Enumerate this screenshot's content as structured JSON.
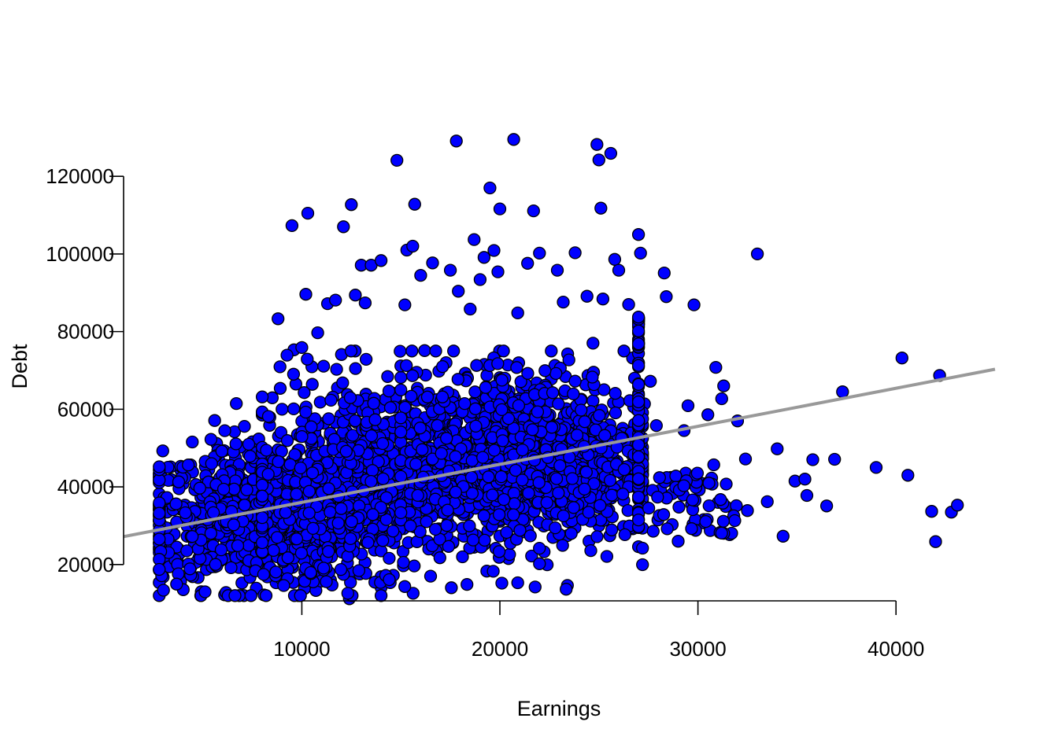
{
  "chart_data": {
    "type": "scatter",
    "title": "",
    "xlabel": "Earnings",
    "ylabel": "Debt",
    "xlim": [
      1000,
      45000
    ],
    "ylim": [
      7000,
      133000
    ],
    "xticks": [
      10000,
      20000,
      30000,
      40000
    ],
    "yticks": [
      20000,
      40000,
      60000,
      80000,
      100000,
      120000
    ],
    "xtick_labels": [
      "10000",
      "20000",
      "30000",
      "40000"
    ],
    "ytick_labels": [
      "20000",
      "40000",
      "60000",
      "80000",
      "100000",
      "120000"
    ],
    "grid": false,
    "legend": "none",
    "point_fill": "#0000ff",
    "point_stroke": "#000000",
    "fit_line_color": "#999999",
    "fit_line": {
      "x": [
        1000,
        45000
      ],
      "y": [
        27200,
        70300
      ]
    },
    "points": [
      [
        2800,
        38200
      ],
      [
        2900,
        35200
      ],
      [
        3100,
        21400
      ],
      [
        3200,
        33500
      ],
      [
        3000,
        16800
      ],
      [
        3400,
        29300
      ],
      [
        3500,
        23900
      ],
      [
        3700,
        21300
      ],
      [
        3900,
        44200
      ],
      [
        4000,
        40800
      ],
      [
        4100,
        35300
      ],
      [
        4400,
        19300
      ],
      [
        4600,
        29800
      ],
      [
        4800,
        21700
      ],
      [
        5200,
        33400
      ],
      [
        5300,
        27600
      ],
      [
        5400,
        24500
      ],
      [
        5600,
        57100
      ],
      [
        5700,
        51200
      ],
      [
        5800,
        47000
      ],
      [
        6100,
        12200
      ],
      [
        6200,
        38000
      ],
      [
        6400,
        43200
      ],
      [
        6600,
        54200
      ],
      [
        6800,
        21100
      ],
      [
        7000,
        32300
      ],
      [
        7100,
        55600
      ],
      [
        7300,
        48500
      ],
      [
        7500,
        51600
      ],
      [
        7700,
        13900
      ],
      [
        7900,
        28000
      ],
      [
        8000,
        19800
      ],
      [
        8200,
        44400
      ],
      [
        8400,
        22400
      ],
      [
        8600,
        36700
      ],
      [
        8700,
        15300
      ],
      [
        8800,
        83300
      ],
      [
        9000,
        60000
      ],
      [
        9200,
        30200
      ],
      [
        9400,
        38700
      ],
      [
        9500,
        107300
      ],
      [
        9600,
        75300
      ],
      [
        9700,
        66500
      ],
      [
        9800,
        49400
      ],
      [
        10000,
        75900
      ],
      [
        10200,
        89600
      ],
      [
        10300,
        110500
      ],
      [
        10400,
        57500
      ],
      [
        10600,
        22500
      ],
      [
        10800,
        79700
      ],
      [
        11100,
        71100
      ],
      [
        11300,
        87200
      ],
      [
        11500,
        45500
      ],
      [
        11700,
        88100
      ],
      [
        12000,
        74100
      ],
      [
        12100,
        107000
      ],
      [
        12300,
        63800
      ],
      [
        12400,
        11200
      ],
      [
        12500,
        112700
      ],
      [
        12700,
        89400
      ],
      [
        13000,
        97100
      ],
      [
        13200,
        87400
      ],
      [
        13500,
        97100
      ],
      [
        13800,
        54600
      ],
      [
        14000,
        98300
      ],
      [
        14100,
        15500
      ],
      [
        14500,
        61300
      ],
      [
        14800,
        124100
      ],
      [
        15200,
        86900
      ],
      [
        15300,
        101000
      ],
      [
        15600,
        102000
      ],
      [
        15700,
        112800
      ],
      [
        16000,
        94500
      ],
      [
        16200,
        75100
      ],
      [
        16400,
        64100
      ],
      [
        16500,
        17000
      ],
      [
        16600,
        97700
      ],
      [
        16800,
        61600
      ],
      [
        17200,
        57700
      ],
      [
        17500,
        95800
      ],
      [
        17800,
        129100
      ],
      [
        17900,
        90400
      ],
      [
        18200,
        46400
      ],
      [
        18500,
        85800
      ],
      [
        18700,
        103700
      ],
      [
        19000,
        93400
      ],
      [
        19200,
        99100
      ],
      [
        19500,
        117000
      ],
      [
        19700,
        100900
      ],
      [
        19900,
        95400
      ],
      [
        20000,
        111600
      ],
      [
        20100,
        15200
      ],
      [
        20400,
        71400
      ],
      [
        20700,
        129500
      ],
      [
        20900,
        84800
      ],
      [
        21100,
        65600
      ],
      [
        21400,
        97600
      ],
      [
        21600,
        22200
      ],
      [
        21700,
        111100
      ],
      [
        22000,
        100200
      ],
      [
        22300,
        44600
      ],
      [
        22600,
        67800
      ],
      [
        22900,
        95800
      ],
      [
        23200,
        87600
      ],
      [
        23500,
        58200
      ],
      [
        23800,
        100300
      ],
      [
        24100,
        62400
      ],
      [
        24400,
        89100
      ],
      [
        24700,
        77000
      ],
      [
        24900,
        128200
      ],
      [
        25000,
        124200
      ],
      [
        25100,
        111800
      ],
      [
        25200,
        88400
      ],
      [
        25400,
        22100
      ],
      [
        25600,
        125900
      ],
      [
        25800,
        98600
      ],
      [
        26000,
        95800
      ],
      [
        26200,
        55100
      ],
      [
        26500,
        87000
      ],
      [
        26700,
        73200
      ],
      [
        27000,
        105000
      ],
      [
        27100,
        100200
      ],
      [
        27000,
        24600
      ],
      [
        27300,
        61400
      ],
      [
        27600,
        67200
      ],
      [
        27900,
        55800
      ],
      [
        28300,
        95100
      ],
      [
        28400,
        89000
      ],
      [
        28700,
        30300
      ],
      [
        29000,
        26000
      ],
      [
        29300,
        54500
      ],
      [
        29500,
        60900
      ],
      [
        29800,
        86900
      ],
      [
        30200,
        40900
      ],
      [
        30500,
        58600
      ],
      [
        30800,
        45700
      ],
      [
        30900,
        70800
      ],
      [
        31200,
        62700
      ],
      [
        31300,
        66000
      ],
      [
        31600,
        27700
      ],
      [
        32000,
        57000
      ],
      [
        32400,
        47200
      ],
      [
        32500,
        33900
      ],
      [
        33000,
        100000
      ],
      [
        33500,
        36200
      ],
      [
        34000,
        49800
      ],
      [
        34300,
        27300
      ],
      [
        34900,
        41500
      ],
      [
        35400,
        42000
      ],
      [
        35500,
        37800
      ],
      [
        35800,
        47000
      ],
      [
        36500,
        35100
      ],
      [
        36900,
        47100
      ],
      [
        37300,
        64500
      ],
      [
        39000,
        45000
      ],
      [
        40300,
        73200
      ],
      [
        40600,
        43000
      ],
      [
        41800,
        33700
      ],
      [
        42000,
        25900
      ],
      [
        42200,
        68700
      ],
      [
        42800,
        33500
      ],
      [
        43100,
        35300
      ],
      [
        27000,
        82000
      ],
      [
        27000,
        78000
      ],
      [
        27000,
        72000
      ],
      [
        26800,
        68000
      ],
      [
        27000,
        64000
      ],
      [
        26900,
        60000
      ],
      [
        27000,
        56000
      ],
      [
        27000,
        50000
      ],
      [
        27000,
        45000
      ],
      [
        27000,
        41000
      ],
      [
        27000,
        37000
      ],
      [
        27000,
        33000
      ],
      [
        27000,
        29500
      ],
      [
        26500,
        43000
      ],
      [
        26000,
        38000
      ],
      [
        25500,
        34000
      ],
      [
        25000,
        30000
      ],
      [
        24500,
        26000
      ]
    ]
  }
}
